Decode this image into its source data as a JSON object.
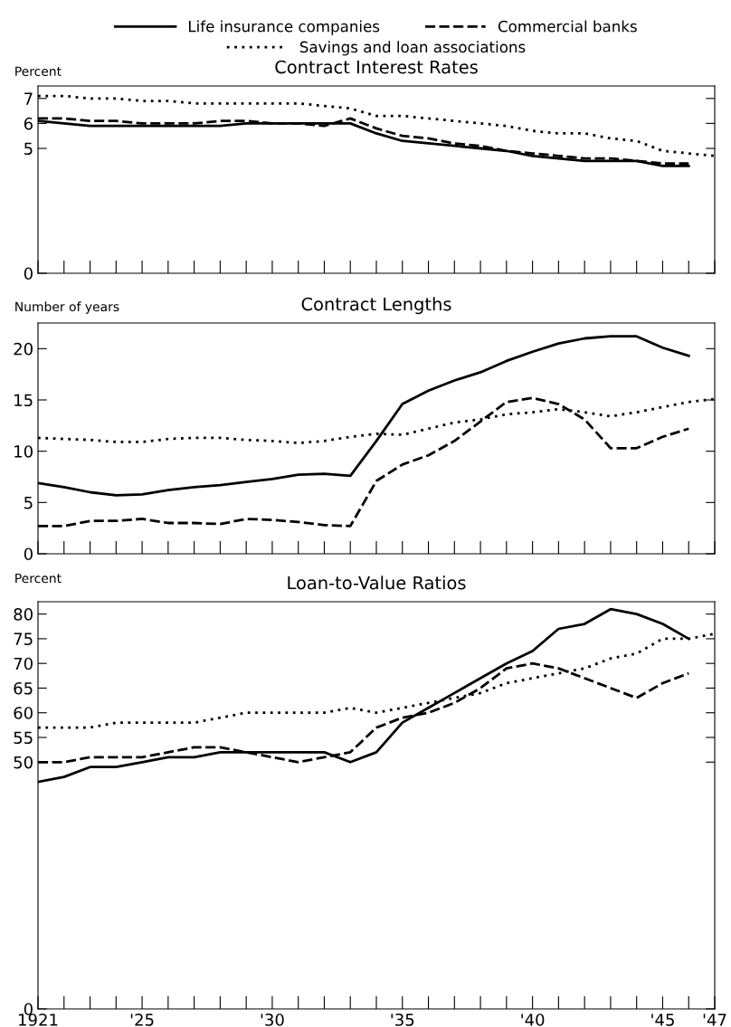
{
  "chart_data": [
    {
      "type": "line",
      "title": "Contract Interest Rates",
      "ylabel": "Percent",
      "legend": "top",
      "tick_labels": "y",
      "x": [
        1921,
        1922,
        1923,
        1924,
        1925,
        1926,
        1927,
        1928,
        1929,
        1930,
        1931,
        1932,
        1933,
        1934,
        1935,
        1936,
        1937,
        1938,
        1939,
        1940,
        1941,
        1942,
        1943,
        1944,
        1945,
        1946
      ],
      "xlim": [
        1921,
        1947
      ],
      "xticks": [
        1921,
        1922,
        1923,
        1924,
        1925,
        1926,
        1927,
        1928,
        1929,
        1930,
        1931,
        1932,
        1933,
        1934,
        1935,
        1936,
        1937,
        1938,
        1939,
        1940,
        1941,
        1942,
        1943,
        1944,
        1945,
        1946,
        1947
      ],
      "ylim": [
        0,
        7.5
      ],
      "yticks": [
        0,
        5,
        6,
        7
      ],
      "series": [
        {
          "name": "Life insurance companies",
          "color": "#000000",
          "line_style": "solid",
          "values": [
            6.1,
            6.0,
            5.9,
            5.9,
            5.9,
            5.9,
            5.9,
            5.9,
            6.0,
            6.0,
            6.0,
            6.0,
            6.0,
            5.6,
            5.3,
            5.2,
            5.1,
            5.0,
            4.9,
            4.7,
            4.6,
            4.5,
            4.5,
            4.5,
            4.3,
            4.3
          ]
        },
        {
          "name": "Commercial banks",
          "color": "#000000",
          "line_style": "dashed",
          "values": [
            6.2,
            6.2,
            6.1,
            6.1,
            6.0,
            6.0,
            6.0,
            6.1,
            6.1,
            6.0,
            6.0,
            5.9,
            6.2,
            5.8,
            5.5,
            5.4,
            5.2,
            5.1,
            4.9,
            4.8,
            4.7,
            4.6,
            4.6,
            4.5,
            4.4,
            4.4
          ]
        },
        {
          "name": "Savings and loan associations",
          "color": "#000000",
          "line_style": "dotted",
          "x": [
            1921,
            1922,
            1923,
            1924,
            1925,
            1926,
            1927,
            1928,
            1929,
            1930,
            1931,
            1932,
            1933,
            1934,
            1935,
            1936,
            1937,
            1938,
            1939,
            1940,
            1941,
            1942,
            1943,
            1944,
            1945,
            1946,
            1947
          ],
          "values": [
            7.1,
            7.1,
            7.0,
            7.0,
            6.9,
            6.9,
            6.8,
            6.8,
            6.8,
            6.8,
            6.8,
            6.7,
            6.6,
            6.3,
            6.3,
            6.2,
            6.1,
            6.0,
            5.9,
            5.7,
            5.6,
            5.6,
            5.4,
            5.3,
            4.9,
            4.8,
            4.7
          ]
        }
      ]
    },
    {
      "type": "line",
      "title": "Contract Lengths",
      "ylabel": "Number of years",
      "tick_labels": "y",
      "x": [
        1921,
        1922,
        1923,
        1924,
        1925,
        1926,
        1927,
        1928,
        1929,
        1930,
        1931,
        1932,
        1933,
        1934,
        1935,
        1936,
        1937,
        1938,
        1939,
        1940,
        1941,
        1942,
        1943,
        1944,
        1945,
        1946
      ],
      "xlim": [
        1921,
        1947
      ],
      "xticks": [
        1921,
        1922,
        1923,
        1924,
        1925,
        1926,
        1927,
        1928,
        1929,
        1930,
        1931,
        1932,
        1933,
        1934,
        1935,
        1936,
        1937,
        1938,
        1939,
        1940,
        1941,
        1942,
        1943,
        1944,
        1945,
        1946,
        1947
      ],
      "ylim": [
        0,
        22.5
      ],
      "yticks": [
        0,
        5,
        10,
        15,
        20
      ],
      "series": [
        {
          "color": "#000000",
          "line_style": "solid",
          "values": [
            6.9,
            6.5,
            6.0,
            5.7,
            5.8,
            6.2,
            6.5,
            6.7,
            7.0,
            7.3,
            7.7,
            7.8,
            7.6,
            11.0,
            14.6,
            15.9,
            16.9,
            17.7,
            18.8,
            19.7,
            20.5,
            21.0,
            21.2,
            21.2,
            20.1,
            19.3
          ]
        },
        {
          "color": "#000000",
          "line_style": "dashed",
          "values": [
            2.7,
            2.7,
            3.2,
            3.2,
            3.4,
            3.0,
            3.0,
            2.9,
            3.4,
            3.3,
            3.1,
            2.8,
            2.7,
            7.1,
            8.7,
            9.6,
            11.0,
            12.9,
            14.8,
            15.2,
            14.6,
            13.1,
            10.3,
            10.3,
            11.4,
            12.2
          ]
        },
        {
          "color": "#000000",
          "line_style": "dotted",
          "x": [
            1921,
            1922,
            1923,
            1924,
            1925,
            1926,
            1927,
            1928,
            1929,
            1930,
            1931,
            1932,
            1933,
            1934,
            1935,
            1936,
            1937,
            1938,
            1939,
            1940,
            1941,
            1942,
            1943,
            1944,
            1945,
            1946,
            1947
          ],
          "values": [
            11.3,
            11.2,
            11.1,
            10.9,
            10.9,
            11.2,
            11.3,
            11.3,
            11.1,
            11.0,
            10.8,
            11.0,
            11.4,
            11.7,
            11.6,
            12.2,
            12.8,
            13.1,
            13.6,
            13.8,
            14.1,
            13.8,
            13.4,
            13.8,
            14.3,
            14.8,
            15.1
          ]
        }
      ]
    },
    {
      "type": "line",
      "title": "Loan-to-Value Ratios",
      "ylabel": "Percent",
      "x": [
        1921,
        1922,
        1923,
        1924,
        1925,
        1926,
        1927,
        1928,
        1929,
        1930,
        1931,
        1932,
        1933,
        1934,
        1935,
        1936,
        1937,
        1938,
        1939,
        1940,
        1941,
        1942,
        1943,
        1944,
        1945,
        1946
      ],
      "xlim": [
        1921,
        1947
      ],
      "xticks": [
        1921,
        {
          "value": 1922,
          "label": null
        },
        {
          "value": 1923,
          "label": null
        },
        {
          "value": 1924,
          "label": null
        },
        {
          "value": 1925,
          "label": "'25"
        },
        {
          "value": 1926,
          "label": null
        },
        {
          "value": 1927,
          "label": null
        },
        {
          "value": 1928,
          "label": null
        },
        {
          "value": 1929,
          "label": null
        },
        {
          "value": 1930,
          "label": "'30"
        },
        {
          "value": 1931,
          "label": null
        },
        {
          "value": 1932,
          "label": null
        },
        {
          "value": 1933,
          "label": null
        },
        {
          "value": 1934,
          "label": null
        },
        {
          "value": 1935,
          "label": "'35"
        },
        {
          "value": 1936,
          "label": null
        },
        {
          "value": 1937,
          "label": null
        },
        {
          "value": 1938,
          "label": null
        },
        {
          "value": 1939,
          "label": null
        },
        {
          "value": 1940,
          "label": "'40"
        },
        {
          "value": 1941,
          "label": null
        },
        {
          "value": 1942,
          "label": null
        },
        {
          "value": 1943,
          "label": null
        },
        {
          "value": 1944,
          "label": null
        },
        {
          "value": 1945,
          "label": "'45"
        },
        {
          "value": 1946,
          "label": null
        },
        {
          "value": 1947,
          "label": "'47"
        }
      ],
      "ylim": [
        0,
        82.5
      ],
      "yticks": [
        0,
        50,
        55,
        60,
        65,
        70,
        75,
        80
      ],
      "series": [
        {
          "color": "#000000",
          "line_style": "solid",
          "values": [
            46,
            47,
            49,
            49,
            50,
            51,
            51,
            52,
            52,
            52,
            52,
            52,
            50,
            52,
            58,
            61,
            64,
            67,
            70,
            72.5,
            77,
            78,
            81,
            80,
            78,
            75
          ]
        },
        {
          "color": "#000000",
          "line_style": "dashed",
          "values": [
            50,
            50,
            51,
            51,
            51,
            52,
            53,
            53,
            52,
            51,
            50,
            51,
            52,
            57,
            59,
            60,
            62,
            65,
            69,
            70,
            69,
            67,
            65,
            63,
            66,
            68
          ]
        },
        {
          "color": "#000000",
          "line_style": "dotted",
          "x": [
            1921,
            1922,
            1923,
            1924,
            1925,
            1926,
            1927,
            1928,
            1929,
            1930,
            1931,
            1932,
            1933,
            1934,
            1935,
            1936,
            1937,
            1938,
            1939,
            1940,
            1941,
            1942,
            1943,
            1944,
            1945,
            1946,
            1947
          ],
          "values": [
            57,
            57,
            57,
            58,
            58,
            58,
            58,
            59,
            60,
            60,
            60,
            60,
            61,
            60,
            61,
            62,
            63,
            64,
            66,
            67,
            68,
            69,
            71,
            72,
            75,
            75,
            76
          ]
        }
      ]
    }
  ]
}
